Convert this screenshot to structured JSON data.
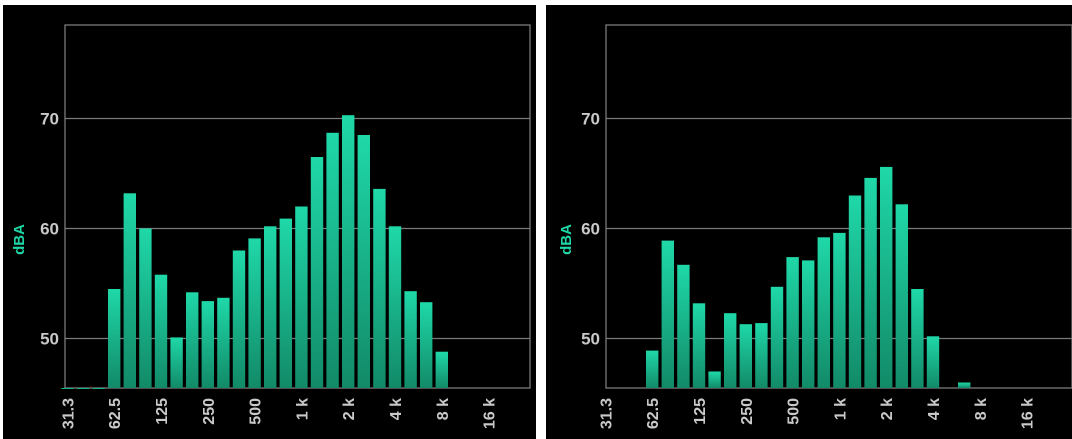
{
  "chart_data": [
    {
      "type": "bar",
      "ylabel": "dBA",
      "ylim": [
        45.5,
        78.5
      ],
      "y_ticks": [
        "50",
        "60",
        "70"
      ],
      "x_ticks": [
        "31.3",
        "62.5",
        "125",
        "250",
        "500",
        "1 k",
        "2 k",
        "4 k",
        "8 k",
        "16 k"
      ],
      "bar_color": "#1fd8a8",
      "bar_color_bottom": "#128a68",
      "grid": true,
      "values": [
        45.5,
        45.5,
        45.5,
        54.5,
        63.2,
        60.0,
        55.8,
        50.1,
        54.2,
        53.4,
        53.7,
        58.0,
        59.1,
        60.2,
        60.9,
        62.0,
        66.5,
        68.7,
        70.3,
        68.5,
        63.6,
        60.2,
        54.3,
        53.3,
        48.8,
        null,
        null,
        null,
        null
      ]
    },
    {
      "type": "bar",
      "ylabel": "dBA",
      "ylim": [
        45.5,
        78.5
      ],
      "y_ticks": [
        "50",
        "60",
        "70"
      ],
      "x_ticks": [
        "31.3",
        "62.5",
        "125",
        "250",
        "500",
        "1 k",
        "2 k",
        "4 k",
        "8 k",
        "16 k"
      ],
      "bar_color": "#1fd8a8",
      "bar_color_bottom": "#128a68",
      "grid": true,
      "values": [
        null,
        null,
        null,
        48.9,
        58.9,
        56.7,
        53.2,
        47.0,
        52.3,
        51.3,
        51.4,
        54.7,
        57.4,
        57.1,
        59.2,
        59.6,
        63.0,
        64.6,
        65.6,
        62.2,
        54.5,
        50.2,
        null,
        46.0,
        null,
        null,
        null,
        null,
        null
      ]
    }
  ]
}
